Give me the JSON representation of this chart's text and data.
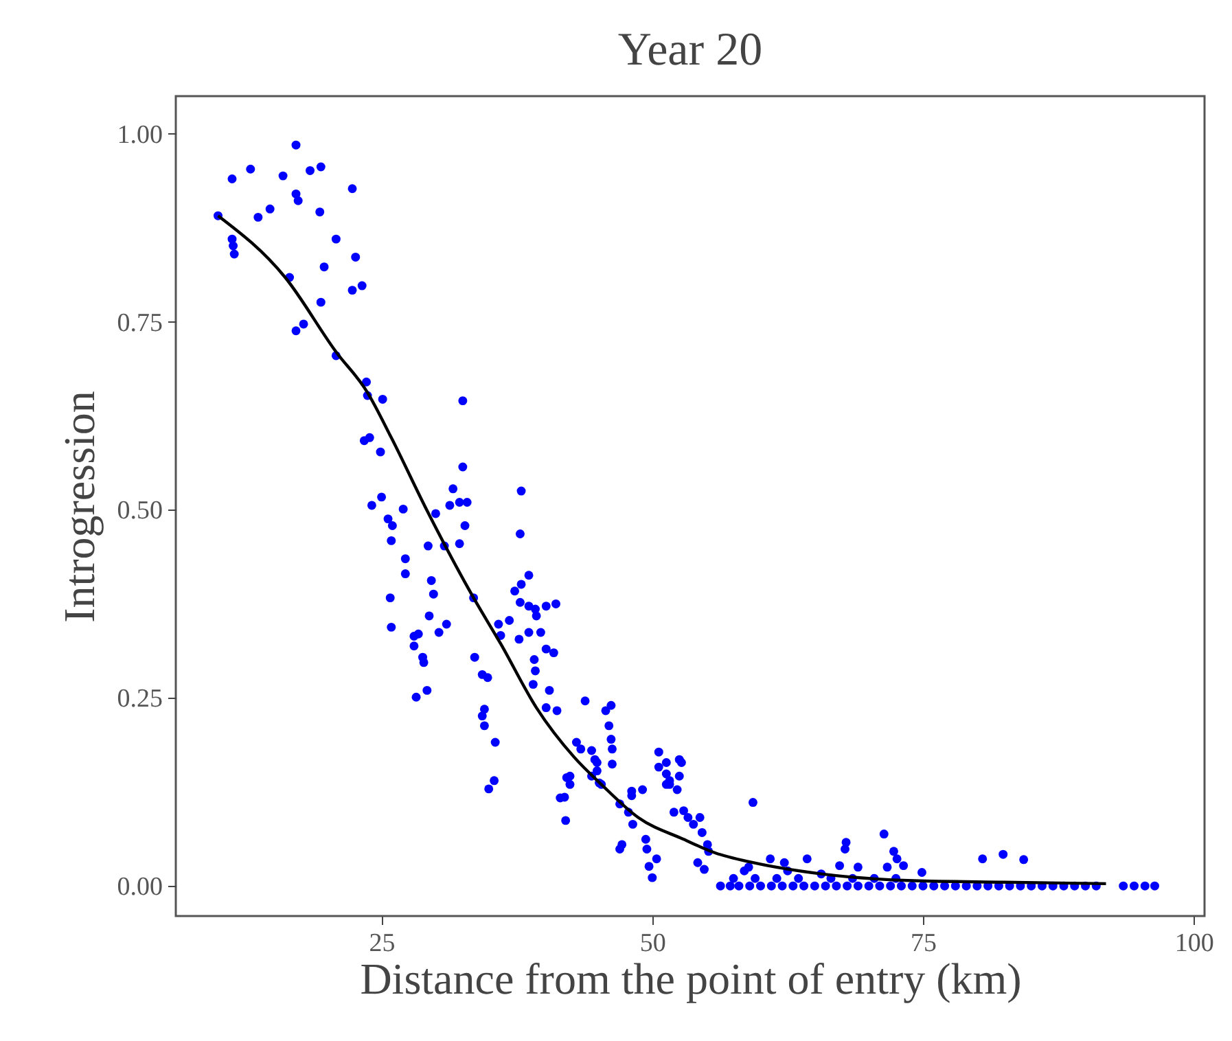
{
  "chart_data": {
    "type": "scatter",
    "title": "Year 20",
    "xlabel": "Distance from the point of entry (km)",
    "ylabel": "Introgression",
    "xlim": [
      6,
      101
    ],
    "ylim": [
      -0.04,
      1.05
    ],
    "xticks": [
      25,
      50,
      75,
      100
    ],
    "yticks": [
      {
        "value": 0,
        "label": "0.00"
      },
      {
        "value": 0.25,
        "label": "0.25"
      },
      {
        "value": 0.5,
        "label": "0.50"
      },
      {
        "value": 0.75,
        "label": "0.75"
      },
      {
        "value": 1,
        "label": "1.00"
      }
    ],
    "grid": false,
    "series": [
      {
        "marker": "circle",
        "color": "#0000ff",
        "x": [
          9.9,
          11.2,
          12.9,
          11.2,
          11.3,
          11.4,
          13.6,
          14.7,
          15.9,
          17.1,
          17.1,
          17.3,
          18.4,
          19.4,
          19.3,
          22.3,
          20.8,
          19.7,
          22.6,
          22.3,
          23.2,
          16.5,
          19.4,
          17.1,
          17.8,
          20.8,
          23.6,
          23.7,
          25.1,
          32.5,
          23.4,
          23.9,
          24.9,
          32.5,
          31.6,
          31.3,
          32.2,
          32.9,
          37.9,
          24.1,
          25.0,
          27.0,
          30.0,
          25.6,
          26.0,
          25.9,
          29.3,
          30.8,
          32.7,
          32.2,
          37.8,
          27.2,
          27.2,
          29.6,
          29.8,
          25.8,
          33.5,
          25.9,
          29.4,
          31.0,
          30.3,
          28.0,
          28.4,
          28.0,
          28.8,
          28.9,
          28.2,
          29.2,
          33.6,
          34.3,
          34.8,
          34.5,
          34.3,
          34.5,
          35.5,
          35.4,
          34.9,
          38.6,
          37.9,
          37.3,
          37.8,
          38.6,
          39.2,
          39.3,
          40.2,
          41.1,
          35.8,
          36.8,
          37.7,
          38.6,
          39.7,
          36.0,
          40.2,
          40.9,
          39.1,
          39.2,
          39.0,
          40.5,
          40.2,
          41.2,
          43.8,
          45.7,
          46.2,
          46.0,
          46.2,
          46.3,
          46.3,
          43.0,
          43.4,
          44.4,
          44.7,
          44.9,
          42.4,
          42.4,
          45.3,
          50.6,
          51.3,
          52.5,
          51.6,
          52.5,
          51.3,
          48.1,
          49.1,
          44.9,
          44.4,
          45.1,
          42.1,
          41.9,
          42.0,
          41.5,
          48.1,
          47.0,
          47.8,
          48.2,
          47.2,
          47.0,
          49.4,
          49.5,
          50.4,
          49.7,
          50.0,
          50.6,
          51.3,
          51.6,
          52.3,
          52.7,
          52.0,
          52.9,
          53.3,
          53.8,
          54.4,
          54.6,
          55.1,
          55.2,
          54.2,
          54.8,
          59.3,
          67.9,
          67.8,
          67.3,
          71.4,
          72.3,
          72.6,
          73.2,
          71.7,
          80.5,
          82.4,
          84.3,
          74.9,
          60.9,
          62.2,
          64.3,
          58.9,
          65.6,
          69.0,
          56.3,
          57.2,
          58.0,
          59.0,
          60.0,
          61.0,
          62.0,
          63.0,
          64.0,
          65.0,
          66.0,
          67.0,
          68.0,
          69.0,
          70.0,
          71.0,
          72.0,
          73.0,
          74.0,
          75.0,
          76.0,
          77.0,
          78.0,
          79.0,
          80.0,
          81.0,
          82.0,
          83.0,
          84.0,
          85.0,
          86.0,
          87.0,
          88.0,
          89.0,
          90.0,
          91.0,
          93.5,
          94.5,
          95.5,
          96.4,
          57.5,
          59.5,
          61.5,
          63.5,
          66.5,
          68.5,
          70.5,
          72.5,
          58.5,
          62.5
        ],
        "values": [
          0.891,
          0.94,
          0.953,
          0.86,
          0.851,
          0.84,
          0.889,
          0.9,
          0.944,
          0.985,
          0.92,
          0.911,
          0.951,
          0.956,
          0.896,
          0.927,
          0.86,
          0.823,
          0.836,
          0.792,
          0.798,
          0.809,
          0.776,
          0.738,
          0.747,
          0.705,
          0.67,
          0.652,
          0.647,
          0.645,
          0.592,
          0.596,
          0.577,
          0.557,
          0.528,
          0.506,
          0.51,
          0.51,
          0.525,
          0.506,
          0.517,
          0.501,
          0.495,
          0.488,
          0.479,
          0.459,
          0.452,
          0.452,
          0.479,
          0.455,
          0.468,
          0.435,
          0.415,
          0.406,
          0.388,
          0.383,
          0.383,
          0.344,
          0.359,
          0.348,
          0.337,
          0.332,
          0.335,
          0.319,
          0.304,
          0.297,
          0.251,
          0.26,
          0.304,
          0.281,
          0.277,
          0.235,
          0.226,
          0.213,
          0.191,
          0.14,
          0.129,
          0.413,
          0.401,
          0.392,
          0.377,
          0.372,
          0.368,
          0.359,
          0.372,
          0.375,
          0.348,
          0.353,
          0.328,
          0.337,
          0.337,
          0.333,
          0.315,
          0.31,
          0.301,
          0.286,
          0.268,
          0.26,
          0.237,
          0.233,
          0.246,
          0.233,
          0.24,
          0.213,
          0.195,
          0.182,
          0.162,
          0.191,
          0.182,
          0.18,
          0.168,
          0.153,
          0.146,
          0.135,
          0.135,
          0.178,
          0.164,
          0.168,
          0.14,
          0.146,
          0.135,
          0.126,
          0.128,
          0.164,
          0.146,
          0.137,
          0.144,
          0.118,
          0.087,
          0.117,
          0.12,
          0.109,
          0.098,
          0.082,
          0.055,
          0.049,
          0.062,
          0.049,
          0.036,
          0.026,
          0.011,
          0.158,
          0.149,
          0.135,
          0.128,
          0.164,
          0.098,
          0.1,
          0.091,
          0.082,
          0.091,
          0.071,
          0.055,
          0.046,
          0.031,
          0.022,
          0.111,
          0.058,
          0.049,
          0.027,
          0.069,
          0.046,
          0.036,
          0.027,
          0.025,
          0.036,
          0.042,
          0.035,
          0.018,
          0.036,
          0.031,
          0.036,
          0.025,
          0.016,
          0.025,
          0,
          0,
          0,
          0,
          0,
          0,
          0,
          0,
          0,
          0,
          0,
          0,
          0,
          0,
          0,
          0,
          0,
          0,
          0,
          0,
          0,
          0,
          0,
          0,
          0,
          0,
          0,
          0,
          0,
          0,
          0,
          0,
          0,
          0,
          0,
          0,
          0,
          0,
          0,
          0,
          0.01,
          0.01,
          0.01,
          0.01,
          0.01,
          0.01,
          0.01,
          0.01,
          0.02,
          0.02
        ]
      },
      {
        "type": "line",
        "color": "#000000",
        "x": [
          9.9,
          16.1,
          20.8,
          23.7,
          25.9,
          29.2,
          33.5,
          36.0,
          39.3,
          42.8,
          45.3,
          48.7,
          52.9,
          55.8,
          59.3,
          65.6,
          74.1,
          82.5,
          91.9
        ],
        "values": [
          0.891,
          0.809,
          0.71,
          0.656,
          0.596,
          0.499,
          0.383,
          0.322,
          0.237,
          0.171,
          0.135,
          0.091,
          0.062,
          0.044,
          0.031,
          0.016,
          0.007,
          0.005,
          0.003
        ]
      }
    ]
  }
}
